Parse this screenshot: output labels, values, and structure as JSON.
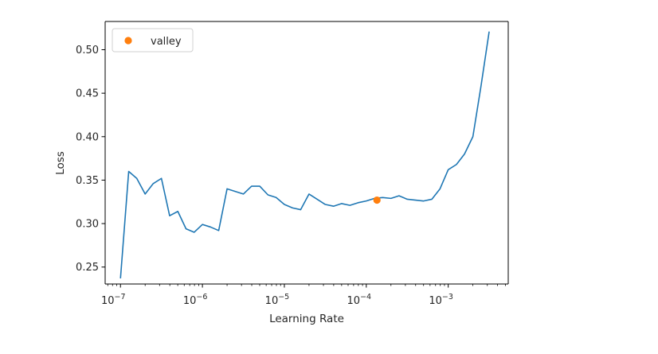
{
  "chart_data": {
    "type": "line",
    "title": "",
    "xlabel": "Learning Rate",
    "ylabel": "Loss",
    "xscale": "log",
    "xlim": [
      6.5e-08,
      0.0054
    ],
    "ylim": [
      0.2305,
      0.5325
    ],
    "grid": false,
    "legend_position": "top-left",
    "x_ticks": [
      1e-07,
      1e-06,
      1e-05,
      0.0001,
      0.001
    ],
    "x_tick_labels": [
      {
        "base": "10",
        "exp": "−7"
      },
      {
        "base": "10",
        "exp": "−6"
      },
      {
        "base": "10",
        "exp": "−5"
      },
      {
        "base": "10",
        "exp": "−4"
      },
      {
        "base": "10",
        "exp": "−3"
      }
    ],
    "y_ticks": [
      0.25,
      0.3,
      0.35,
      0.4,
      0.45,
      0.5
    ],
    "y_tick_labels": [
      "0.25",
      "0.30",
      "0.35",
      "0.40",
      "0.45",
      "0.50"
    ],
    "series": [
      {
        "color": "#1f77b4",
        "x": [
          1e-07,
          1.26e-07,
          1.58e-07,
          2e-07,
          2.51e-07,
          3.16e-07,
          3.98e-07,
          5.01e-07,
          6.31e-07,
          7.94e-07,
          1e-06,
          1.26e-06,
          1.58e-06,
          2e-06,
          2.51e-06,
          3.16e-06,
          3.98e-06,
          5.01e-06,
          6.31e-06,
          7.94e-06,
          1e-05,
          1.26e-05,
          1.58e-05,
          2e-05,
          2.51e-05,
          3.16e-05,
          3.98e-05,
          5.01e-05,
          6.31e-05,
          7.94e-05,
          0.0001,
          0.000126,
          0.000158,
          0.0002,
          0.000251,
          0.000316,
          0.000398,
          0.000501,
          0.000631,
          0.000794,
          0.001,
          0.00126,
          0.00158,
          0.002,
          0.00251,
          0.00316
        ],
        "y": [
          0.237,
          0.36,
          0.352,
          0.334,
          0.346,
          0.352,
          0.309,
          0.314,
          0.294,
          0.29,
          0.299,
          0.296,
          0.292,
          0.34,
          0.337,
          0.334,
          0.343,
          0.343,
          0.333,
          0.33,
          0.322,
          0.318,
          0.316,
          0.334,
          0.328,
          0.322,
          0.32,
          0.323,
          0.321,
          0.324,
          0.326,
          0.329,
          0.33,
          0.329,
          0.332,
          0.328,
          0.327,
          0.326,
          0.328,
          0.34,
          0.362,
          0.368,
          0.38,
          0.4,
          0.458,
          0.521
        ]
      }
    ],
    "markers": [
      {
        "name": "valley",
        "x": 0.000135,
        "y": 0.327,
        "color": "#ff7f0e"
      }
    ]
  }
}
